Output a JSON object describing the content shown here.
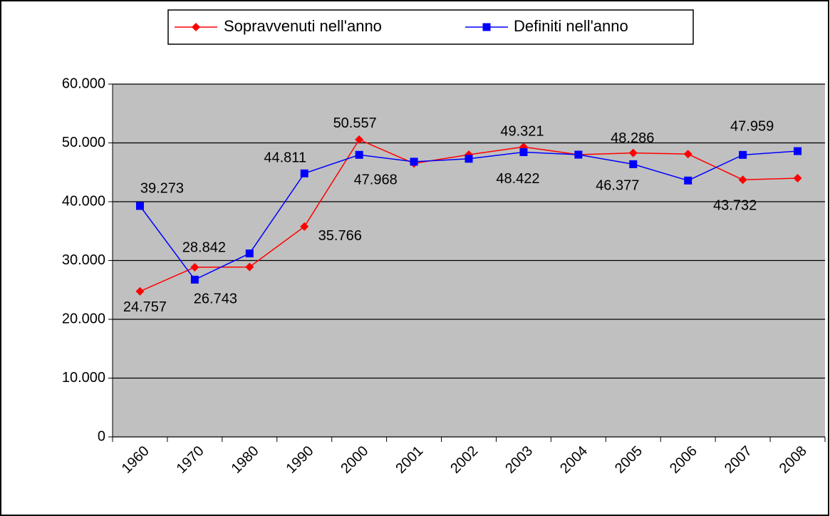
{
  "chart_data": {
    "type": "line",
    "categories": [
      "1960",
      "1970",
      "1980",
      "1990",
      "2000",
      "2001",
      "2002",
      "2003",
      "2004",
      "2005",
      "2006",
      "2007",
      "2008"
    ],
    "series": [
      {
        "name": "Sopravvenuti nell'anno",
        "color": "#ff0000",
        "marker": "diamond",
        "values": [
          24757,
          28842,
          28900,
          35766,
          50557,
          46500,
          48000,
          49321,
          48000,
          48286,
          48100,
          43732,
          44000
        ],
        "value_labels": [
          "24.757",
          "28.842",
          null,
          "35.766",
          "50.557",
          null,
          null,
          "49.321",
          null,
          "48.286",
          null,
          "43.732",
          null
        ]
      },
      {
        "name": "Definiti nell'anno",
        "color": "#0000ff",
        "marker": "square",
        "values": [
          39273,
          26743,
          31200,
          44811,
          47968,
          46800,
          47300,
          48422,
          48000,
          46377,
          43600,
          47959,
          48600
        ],
        "value_labels": [
          "39.273",
          "26.743",
          null,
          "44.811",
          "47.968",
          null,
          null,
          "48.422",
          null,
          "46.377",
          null,
          "47.959",
          null
        ]
      }
    ],
    "ylim": [
      0,
      60000
    ],
    "yticks": [
      0,
      {
        "value": 10000,
        "label": "10.000"
      },
      {
        "value": 20000,
        "label": "20.000"
      },
      {
        "value": 30000,
        "label": "30.000"
      },
      {
        "value": 40000,
        "label": "40.000"
      },
      {
        "value": 50000,
        "label": "50.000"
      },
      {
        "value": 60000,
        "label": "60.000"
      }
    ],
    "grid": true,
    "legend": "top",
    "plot_background": "#c0c0c0"
  }
}
